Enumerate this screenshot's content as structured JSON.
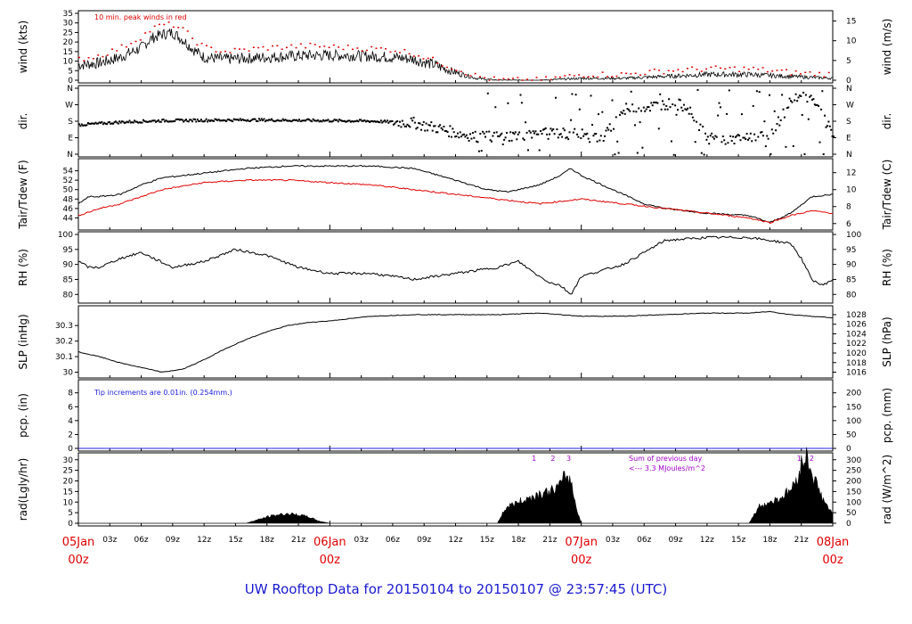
{
  "title": "UW Rooftop Data for 20150104  to  20150107 @ 23:57:45  (UTC)",
  "colors": {
    "title": "#1a1ad0",
    "red": "#e00000",
    "blue": "#2020e0",
    "purple": "#a000c8",
    "black": "#000000"
  },
  "x_axis": {
    "day_labels": [
      {
        "top": "05Jan",
        "bottom": "00z",
        "hour": 0
      },
      {
        "top": "06Jan",
        "bottom": "00z",
        "hour": 24
      },
      {
        "top": "07Jan",
        "bottom": "00z",
        "hour": 48
      },
      {
        "top": "08Jan",
        "bottom": "00z",
        "hour": 72
      }
    ],
    "hour_labels": [
      {
        "text": "03z",
        "hour": 3
      },
      {
        "text": "06z",
        "hour": 6
      },
      {
        "text": "09z",
        "hour": 9
      },
      {
        "text": "12z",
        "hour": 12
      },
      {
        "text": "15z",
        "hour": 15
      },
      {
        "text": "18z",
        "hour": 18
      },
      {
        "text": "21z",
        "hour": 21
      },
      {
        "text": "03z",
        "hour": 27
      },
      {
        "text": "06z",
        "hour": 30
      },
      {
        "text": "09z",
        "hour": 33
      },
      {
        "text": "12z",
        "hour": 36
      },
      {
        "text": "15z",
        "hour": 39
      },
      {
        "text": "18z",
        "hour": 42
      },
      {
        "text": "21z",
        "hour": 45
      },
      {
        "text": "03z",
        "hour": 51
      },
      {
        "text": "06z",
        "hour": 54
      },
      {
        "text": "09z",
        "hour": 57
      },
      {
        "text": "12z",
        "hour": 60
      },
      {
        "text": "15z",
        "hour": 63
      },
      {
        "text": "18z",
        "hour": 66
      },
      {
        "text": "21z",
        "hour": 69
      }
    ]
  },
  "chart_data": [
    {
      "type": "line",
      "ylabel_left": "wind (kts)",
      "ylabel_right": "wind (m/s)",
      "ylim": [
        0,
        35
      ],
      "yticks_left": [
        0,
        5,
        10,
        15,
        20,
        25,
        30,
        35
      ],
      "yticks_right": [
        0,
        5,
        10,
        15
      ],
      "annotation": "10 min. peak winds in red",
      "series": [
        {
          "name": "wind",
          "color": "#000000",
          "x": [
            0,
            2,
            4,
            6,
            7,
            8,
            9,
            10,
            11,
            12,
            14,
            18,
            22,
            26,
            30,
            32,
            34,
            36,
            38,
            40,
            44,
            48,
            52,
            56,
            60,
            64,
            68,
            72
          ],
          "y": [
            8,
            9,
            12,
            17,
            22,
            24,
            25,
            21,
            16,
            12,
            11,
            12,
            13,
            13,
            12,
            11,
            8,
            4,
            1,
            0,
            0,
            1,
            1,
            2,
            3,
            3,
            2,
            1
          ]
        },
        {
          "name": "10 min. peak winds",
          "color": "#e00000",
          "x": [
            0,
            2,
            4,
            6,
            7,
            8,
            9,
            10,
            11,
            12,
            14,
            18,
            22,
            26,
            30,
            32,
            34,
            36,
            38,
            40,
            44,
            48,
            52,
            56,
            60,
            64,
            68,
            72
          ],
          "y": [
            11,
            13,
            17,
            23,
            27,
            29,
            29,
            26,
            21,
            17,
            15,
            17,
            18,
            17,
            16,
            14,
            10,
            6,
            2,
            0,
            0,
            3,
            3,
            5,
            6,
            6,
            4,
            3
          ]
        }
      ]
    },
    {
      "type": "scatter",
      "ylabel_left": "dir.",
      "ylabel_right": "dir.",
      "yticks_left_labels": [
        "N",
        "E",
        "S",
        "W",
        "N"
      ],
      "yticks_right_labels": [
        "N",
        "E",
        "S",
        "W",
        "N"
      ],
      "series": [
        {
          "name": "dir",
          "color": "#000000",
          "x": [
            0,
            4,
            8,
            12,
            16,
            20,
            24,
            28,
            30,
            32,
            33,
            34,
            36,
            38,
            40,
            42,
            44,
            46,
            48,
            50,
            52,
            54,
            56,
            58,
            60,
            62,
            64,
            66,
            68,
            70,
            72
          ],
          "y": [
            165,
            180,
            188,
            190,
            192,
            190,
            188,
            185,
            180,
            175,
            160,
            150,
            120,
            100,
            100,
            110,
            115,
            120,
            110,
            90,
            250,
            260,
            280,
            270,
            90,
            80,
            100,
            110,
            300,
            320,
            100
          ]
        }
      ]
    },
    {
      "type": "line",
      "ylabel_left": "Tair/Tdew (F)",
      "ylabel_right": "Tair/Tdew (C)",
      "ylim": [
        42,
        56
      ],
      "yticks_left": [
        44,
        46,
        48,
        50,
        52,
        54
      ],
      "yticks_right": [
        6,
        8,
        10,
        12
      ],
      "series": [
        {
          "name": "Tair",
          "color": "#000000",
          "x": [
            0,
            1,
            2,
            4,
            6,
            8,
            12,
            16,
            20,
            24,
            28,
            32,
            36,
            39,
            41,
            44,
            46,
            47,
            48,
            50,
            52,
            54,
            56,
            60,
            64,
            66,
            68,
            70,
            72
          ],
          "y": [
            47,
            48.5,
            48.5,
            49,
            51,
            52.5,
            53.5,
            54.5,
            55,
            55,
            55,
            54.5,
            52,
            50,
            49.5,
            51,
            53,
            54.5,
            53,
            51,
            49,
            47,
            46,
            45,
            44.5,
            43,
            45,
            48.5,
            49
          ]
        },
        {
          "name": "Tdew",
          "color": "#e00000",
          "x": [
            0,
            2,
            4,
            6,
            8,
            12,
            16,
            20,
            24,
            28,
            32,
            36,
            40,
            44,
            48,
            52,
            56,
            60,
            64,
            66,
            68,
            70,
            72
          ],
          "y": [
            44.5,
            46,
            47,
            48.5,
            50,
            51.5,
            52,
            52,
            51.5,
            51,
            50,
            49,
            48,
            47,
            48,
            47,
            46,
            45,
            44,
            43,
            44.5,
            45.5,
            45
          ]
        }
      ]
    },
    {
      "type": "line",
      "ylabel_left": "RH (%)",
      "ylabel_right": "RH (%)",
      "ylim": [
        78,
        100
      ],
      "yticks_left": [
        80,
        85,
        90,
        95,
        100
      ],
      "yticks_right": [
        80,
        85,
        90,
        95,
        100
      ],
      "series": [
        {
          "name": "RH",
          "color": "#000000",
          "x": [
            0,
            1,
            2,
            4,
            6,
            9,
            12,
            15,
            18,
            21,
            24,
            28,
            32,
            36,
            40,
            42,
            44,
            45,
            46,
            47,
            48,
            50,
            52,
            54,
            56,
            60,
            64,
            66,
            68,
            69,
            70,
            71,
            72
          ],
          "y": [
            91,
            89,
            89,
            92,
            94,
            89,
            91,
            95,
            93,
            89,
            87,
            87,
            85,
            87,
            89,
            91,
            86,
            84,
            83,
            80,
            86,
            88,
            90,
            94,
            98,
            99,
            99,
            98,
            97,
            92,
            85,
            83,
            85
          ]
        }
      ]
    },
    {
      "type": "line",
      "ylabel_left": "SLP (inHg)",
      "ylabel_right": "SLP (hPa)",
      "ylim": [
        29.98,
        30.41
      ],
      "yticks_left": [
        30.0,
        30.1,
        30.2,
        30.3
      ],
      "yticks_right": [
        1016,
        1018,
        1020,
        1022,
        1024,
        1026,
        1028
      ],
      "series": [
        {
          "name": "SLP",
          "color": "#000000",
          "x": [
            0,
            2,
            4,
            6,
            8,
            10,
            12,
            14,
            16,
            18,
            20,
            22,
            24,
            28,
            32,
            36,
            40,
            44,
            48,
            52,
            56,
            60,
            64,
            66,
            68,
            70,
            72
          ],
          "y": [
            30.13,
            30.1,
            30.06,
            30.03,
            30.0,
            30.02,
            30.08,
            30.15,
            30.21,
            30.26,
            30.3,
            30.32,
            30.33,
            30.36,
            30.37,
            30.37,
            30.37,
            30.38,
            30.36,
            30.36,
            30.37,
            30.38,
            30.38,
            30.39,
            30.37,
            30.36,
            30.35
          ]
        }
      ]
    },
    {
      "type": "line",
      "ylabel_left": "pcp. (in)",
      "ylabel_right": "pcp. (mm)",
      "ylim": [
        0,
        9.5
      ],
      "yticks_left": [
        0,
        2,
        4,
        6,
        8
      ],
      "yticks_right": [
        0,
        50,
        100,
        150,
        200
      ],
      "annotation": "Tip increments are 0.01in. (0.254mm.)",
      "series": [
        {
          "name": "pcp",
          "color": "#2020e0",
          "x": [
            0,
            72
          ],
          "y": [
            0,
            0
          ]
        }
      ]
    },
    {
      "type": "area",
      "ylabel_left": "rad(Lgly/hr)",
      "ylabel_right": "rad (W/m^2)",
      "ylim": [
        0,
        32
      ],
      "yticks_left": [
        0,
        5,
        10,
        15,
        20,
        25,
        30
      ],
      "yticks_right": [
        0,
        50,
        100,
        150,
        200,
        250,
        300
      ],
      "annotation": [
        "Sum of previous day",
        "<--- 3.3 MJoules/m^2"
      ],
      "markers": [
        {
          "text": "1",
          "hour": 43.5
        },
        {
          "text": "2",
          "hour": 45.3
        },
        {
          "text": "3",
          "hour": 46.8
        },
        {
          "text": "1",
          "hour": 68.8
        },
        {
          "text": "2",
          "hour": 70.0
        }
      ],
      "series": [
        {
          "name": "rad",
          "color": "#000000",
          "x": [
            0,
            16,
            17,
            18,
            19,
            20,
            21,
            22,
            23,
            24,
            40,
            40.5,
            41,
            42,
            43,
            44,
            45,
            46,
            46.5,
            47,
            47.5,
            48,
            64,
            64.5,
            65,
            66,
            67,
            68,
            68.5,
            69,
            69.5,
            70,
            70.5,
            71,
            71.5,
            72
          ],
          "y": [
            0,
            0,
            1.5,
            3,
            4,
            4.5,
            4,
            3,
            1,
            0,
            0,
            5,
            8,
            10,
            12,
            14,
            15,
            18,
            23,
            20,
            8,
            0,
            0,
            4,
            8,
            10,
            12,
            16,
            20,
            28,
            32,
            24,
            18,
            12,
            8,
            4
          ]
        }
      ]
    }
  ]
}
